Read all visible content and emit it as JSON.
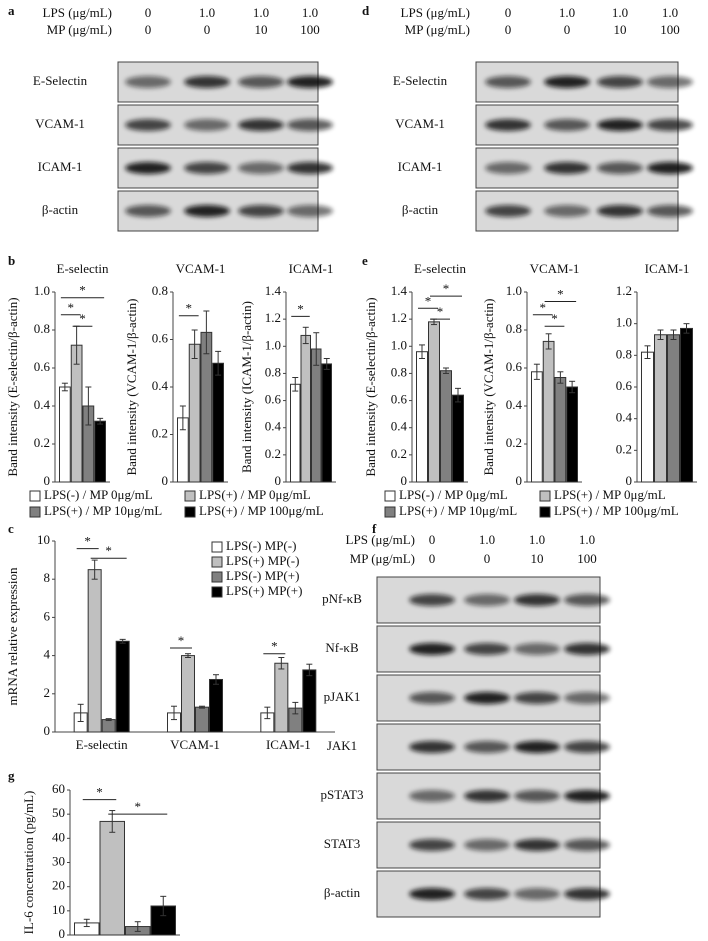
{
  "panels": [
    "a",
    "b",
    "c",
    "d",
    "e",
    "f",
    "g"
  ],
  "blots": [
    {
      "header": [
        {
          "label": "LPS (μg/mL)",
          "values": [
            "0",
            "1.0",
            "1.0",
            "1.0"
          ]
        },
        {
          "label": "MP (μg/mL)",
          "values": [
            "0",
            "0",
            "10",
            "100"
          ]
        }
      ],
      "rows": [
        "E-Selectin",
        "VCAM-1",
        "ICAM-1",
        "β-actin"
      ]
    },
    {
      "header": [
        {
          "label": "LPS (μg/mL)",
          "values": [
            "0",
            "1.0",
            "1.0",
            "1.0"
          ]
        },
        {
          "label": "MP (μg/mL)",
          "values": [
            "0",
            "0",
            "10",
            "100"
          ]
        }
      ],
      "rows": [
        "E-Selectin",
        "VCAM-1",
        "ICAM-1",
        "β-actin"
      ]
    },
    {
      "header": [
        {
          "label": "LPS (μg/mL)",
          "values": [
            "0",
            "1.0",
            "1.0",
            "1.0"
          ]
        },
        {
          "label": "MP (μg/mL)",
          "values": [
            "0",
            "0",
            "10",
            "100"
          ]
        }
      ],
      "rows": [
        "pNf-κB",
        "Nf-κB",
        "pJAK1",
        "JAK1",
        "pSTAT3",
        "STAT3",
        "β-actin"
      ]
    }
  ],
  "legends": [
    [
      "LPS(-) / MP 0μg/mL",
      "LPS(+) / MP 0μg/mL",
      "LPS(+) / MP 10μg/mL",
      "LPS(+) / MP 100μg/mL"
    ],
    [
      "LPS(-) / MP 0μg/mL",
      "LPS(+) / MP 0μg/mL",
      "LPS(+) / MP 10μg/mL",
      "LPS(+) / MP 100μg/mL"
    ]
  ],
  "chart_data": [
    {
      "type": "bar",
      "title": "E-selectin",
      "ylabel": "Band intensity (E-selectin/β-actin)",
      "values": [
        0.5,
        0.72,
        0.4,
        0.32
      ],
      "errors": [
        0.02,
        0.1,
        0.1,
        0.015
      ],
      "colors": [
        "#ffffff",
        "#c0c0c0",
        "#808080",
        "#000000"
      ],
      "ylim": [
        0,
        1
      ],
      "yticks": [
        0,
        0.2,
        0.4,
        0.6,
        0.8,
        {
          "value": 1,
          "label": "1.0"
        }
      ],
      "annotations": [
        "*",
        "*",
        "*"
      ]
    },
    {
      "type": "bar",
      "title": "VCAM-1",
      "ylabel": "Band intensity (VCAM-1/β-actin)",
      "values": [
        0.27,
        0.58,
        0.63,
        0.5
      ],
      "errors": [
        0.05,
        0.06,
        0.09,
        0.05
      ],
      "colors": [
        "#ffffff",
        "#c0c0c0",
        "#808080",
        "#000000"
      ],
      "ylim": [
        0,
        0.8
      ],
      "yticks": [
        0,
        0.2,
        0.4,
        0.6,
        0.8
      ],
      "annotations": [
        "*"
      ]
    },
    {
      "type": "bar",
      "title": "ICAM-1",
      "ylabel": "Band intensity (ICAM-1/β-actin)",
      "values": [
        0.72,
        1.08,
        0.98,
        0.87
      ],
      "errors": [
        0.05,
        0.06,
        0.12,
        0.04
      ],
      "colors": [
        "#ffffff",
        "#c0c0c0",
        "#808080",
        "#000000"
      ],
      "ylim": [
        0,
        1.4
      ],
      "yticks": [
        0,
        0.2,
        0.4,
        0.6,
        0.8,
        {
          "value": 1,
          "label": "1.0"
        },
        1.2,
        1.4
      ],
      "annotations": [
        "*"
      ]
    },
    {
      "type": "bar",
      "title": "E-selectin",
      "ylabel": "Band intensity (E-selectin/β-actin)",
      "values": [
        0.96,
        1.18,
        0.82,
        0.64
      ],
      "errors": [
        0.05,
        0.02,
        0.02,
        0.05
      ],
      "colors": [
        "#ffffff",
        "#c0c0c0",
        "#808080",
        "#000000"
      ],
      "ylim": [
        0,
        1.4
      ],
      "yticks": [
        0,
        0.2,
        0.4,
        0.6,
        0.8,
        {
          "value": 1,
          "label": "1.0"
        },
        1.2,
        1.4
      ],
      "annotations": [
        "*",
        "*",
        "*"
      ]
    },
    {
      "type": "bar",
      "title": "VCAM-1",
      "ylabel": "Band intensity (VCAM-1/β-actin)",
      "values": [
        0.58,
        0.74,
        0.55,
        0.5
      ],
      "errors": [
        0.04,
        0.04,
        0.03,
        0.03
      ],
      "colors": [
        "#ffffff",
        "#c0c0c0",
        "#808080",
        "#000000"
      ],
      "ylim": [
        0,
        1
      ],
      "yticks": [
        0,
        0.2,
        0.4,
        0.6,
        0.8,
        {
          "value": 1,
          "label": "1.0"
        }
      ],
      "annotations": [
        "*",
        "*",
        "*"
      ]
    },
    {
      "type": "bar",
      "title": "ICAM-1",
      "values": [
        0.82,
        0.93,
        0.93,
        0.97
      ],
      "errors": [
        0.04,
        0.03,
        0.03,
        0.03
      ],
      "colors": [
        "#ffffff",
        "#c0c0c0",
        "#808080",
        "#000000"
      ],
      "ylim": [
        0,
        1.2
      ],
      "yticks": [
        0,
        0.2,
        0.4,
        0.6,
        0.8,
        {
          "value": 1,
          "label": "1.0"
        },
        1.2
      ]
    },
    {
      "type": "grouped",
      "ylabel": "mRNA relative expression",
      "categories": [
        "E-selectin",
        "VCAM-1",
        "ICAM-1"
      ],
      "series": [
        {
          "name": "LPS(-) MP(-)",
          "color": "#ffffff",
          "values": [
            1.0,
            1.0,
            1.0
          ],
          "errors": [
            0.45,
            0.35,
            0.3
          ]
        },
        {
          "name": "LPS(+) MP(-)",
          "color": "#c0c0c0",
          "values": [
            8.5,
            4.0,
            3.6
          ],
          "errors": [
            0.5,
            0.1,
            0.3
          ]
        },
        {
          "name": "LPS(-) MP(+)",
          "color": "#808080",
          "values": [
            0.65,
            1.3,
            1.25
          ],
          "errors": [
            0.05,
            0.05,
            0.3
          ]
        },
        {
          "name": "LPS(+) MP(+)",
          "color": "#000000",
          "values": [
            4.75,
            2.75,
            3.25
          ],
          "errors": [
            0.1,
            0.25,
            0.3
          ]
        }
      ],
      "ylim": [
        0,
        10
      ],
      "yticks": [
        0,
        2,
        4,
        6,
        8,
        10
      ],
      "annotations": [
        "*",
        "*",
        "*",
        "*"
      ]
    },
    {
      "type": "bar",
      "ylabel": "IL-6 concentration (pg/mL)",
      "values": [
        5,
        47,
        3.5,
        12
      ],
      "errors": [
        1.5,
        4.5,
        2,
        4
      ],
      "colors": [
        "#ffffff",
        "#c0c0c0",
        "#808080",
        "#000000"
      ],
      "ylim": [
        0,
        60
      ],
      "yticks": [
        0,
        10,
        20,
        30,
        40,
        50,
        60
      ],
      "annotations": [
        "*",
        "*"
      ]
    }
  ]
}
